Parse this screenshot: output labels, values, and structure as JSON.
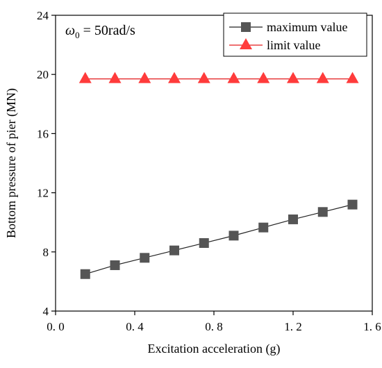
{
  "chart_data": {
    "type": "line",
    "xlabel": "Excitation acceleration (g)",
    "ylabel": "Bottom pressure of pier (MN)",
    "xlim": [
      0.0,
      1.6
    ],
    "ylim": [
      4,
      24
    ],
    "xticks": [
      0.0,
      0.4,
      0.8,
      1.2,
      1.6
    ],
    "xtick_labels": [
      "0. 0",
      "0. 4",
      "0. 8",
      "1. 2",
      "1. 6"
    ],
    "yticks": [
      4,
      8,
      12,
      16,
      20,
      24
    ],
    "ytick_labels": [
      "4",
      "8",
      "12",
      "16",
      "20",
      "24"
    ],
    "grid": false,
    "legend_position": "top-right",
    "annotation": {
      "symbol": "ω",
      "subscript": "0",
      "text": " = 50rad/s"
    },
    "x": [
      0.15,
      0.3,
      0.45,
      0.6,
      0.75,
      0.9,
      1.05,
      1.2,
      1.35,
      1.5
    ],
    "series": [
      {
        "name": "maximum value",
        "marker": "square",
        "color": "#555555",
        "line_color": "#222222",
        "values": [
          6.5,
          7.1,
          7.6,
          8.1,
          8.6,
          9.1,
          9.65,
          10.2,
          10.7,
          11.2
        ]
      },
      {
        "name": "limit value",
        "marker": "triangle",
        "color": "#ff3b3b",
        "line_color": "#e31a1c",
        "values": [
          19.7,
          19.7,
          19.7,
          19.7,
          19.7,
          19.7,
          19.7,
          19.7,
          19.7,
          19.7
        ]
      }
    ]
  }
}
